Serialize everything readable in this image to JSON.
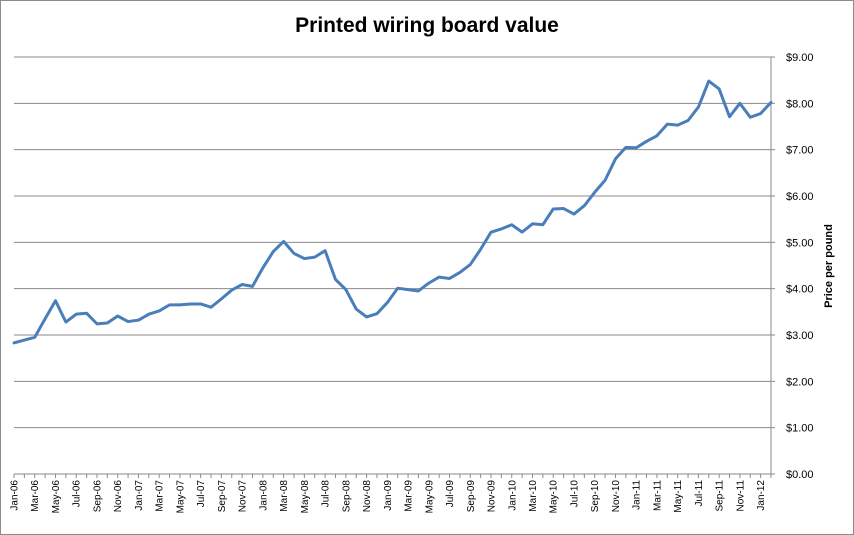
{
  "chart_data": {
    "type": "line",
    "title": "Printed wiring board value",
    "xlabel": "",
    "ylabel": "Price per pound",
    "ylim": [
      0,
      9
    ],
    "y_tick_labels": [
      "$0.00",
      "$1.00",
      "$2.00",
      "$3.00",
      "$4.00",
      "$5.00",
      "$6.00",
      "$7.00",
      "$8.00",
      "$9.00"
    ],
    "y_axis_side": "right",
    "grid": true,
    "legend": "none",
    "line_color": "#4a7ebb",
    "x_tick_labels": [
      "Jan-06",
      "Mar-06",
      "May-06",
      "Jul-06",
      "Sep-06",
      "Nov-06",
      "Jan-07",
      "Mar-07",
      "May-07",
      "Jul-07",
      "Sep-07",
      "Nov-07",
      "Jan-08",
      "Mar-08",
      "May-08",
      "Jul-08",
      "Sep-08",
      "Nov-08",
      "Jan-09",
      "Mar-09",
      "May-09",
      "Jul-09",
      "Sep-09",
      "Nov-09",
      "Jan-10",
      "Mar-10",
      "May-10",
      "Jul-10",
      "Sep-10",
      "Nov-10",
      "Jan-11",
      "Mar-11",
      "May-11",
      "Jul-11",
      "Sep-11",
      "Nov-11",
      "Jan-12"
    ],
    "series": [
      {
        "values": [
          2.83,
          2.89,
          2.95,
          3.35,
          3.74,
          3.28,
          3.45,
          3.47,
          3.24,
          3.26,
          3.41,
          3.29,
          3.32,
          3.45,
          3.52,
          3.65,
          3.65,
          3.67,
          3.67,
          3.6,
          3.78,
          3.97,
          4.09,
          4.05,
          4.45,
          4.8,
          5.02,
          4.76,
          4.65,
          4.68,
          4.82,
          4.2,
          3.98,
          3.56,
          3.39,
          3.46,
          3.7,
          4.01,
          3.98,
          3.95,
          4.12,
          4.25,
          4.22,
          4.35,
          4.52,
          4.85,
          5.22,
          5.29,
          5.38,
          5.22,
          5.4,
          5.38,
          5.72,
          5.73,
          5.61,
          5.79,
          6.08,
          6.34,
          6.8,
          7.05,
          7.04,
          7.18,
          7.3,
          7.55,
          7.53,
          7.63,
          7.92,
          8.48,
          8.31,
          7.71,
          8.0,
          7.7,
          7.78,
          8.02
        ]
      }
    ]
  }
}
